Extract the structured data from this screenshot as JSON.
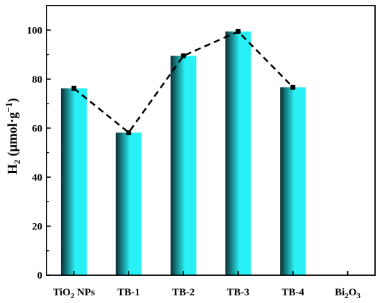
{
  "chart_data": {
    "type": "bar",
    "categories": [
      {
        "main": "TiO",
        "sub": "2",
        "rest": " NPs"
      },
      {
        "main": "TB-1",
        "sub": "",
        "rest": ""
      },
      {
        "main": "TB-2",
        "sub": "",
        "rest": ""
      },
      {
        "main": "TB-3",
        "sub": "",
        "rest": ""
      },
      {
        "main": "TB-4",
        "sub": "",
        "rest": ""
      },
      {
        "main": "Bi",
        "sub": "2",
        "rest": "O",
        "sub2": "3"
      }
    ],
    "values": [
      76.2,
      58.2,
      89.5,
      99.4,
      76.7,
      0
    ],
    "line_overlay": {
      "style": "dashed",
      "marker": "square",
      "values": [
        76.2,
        58.2,
        89.5,
        99.4,
        76.7
      ]
    },
    "ylabel": {
      "base": "H",
      "base_sub": "2",
      "paren": " (μmol·g",
      "sup": "−1",
      "close": ")"
    },
    "ylim": [
      0,
      110
    ],
    "yticks": [
      0,
      20,
      40,
      60,
      80,
      100
    ],
    "grid": false,
    "legend": "none",
    "colors": {
      "bar_dark": "#0a2e33",
      "bar_light": "#28f0f5",
      "line": "#000000"
    }
  }
}
